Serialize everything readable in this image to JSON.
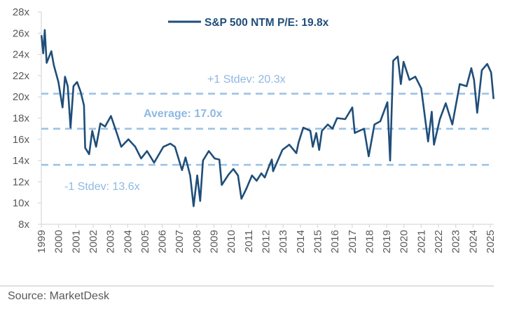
{
  "chart_data": {
    "type": "line",
    "title": "",
    "xlabel": "",
    "ylabel": "",
    "xlim": [
      1999,
      2025
    ],
    "ylim": [
      8,
      28
    ],
    "grid": false,
    "legend_position": "top-center",
    "y_ticks": [
      8,
      10,
      12,
      14,
      16,
      18,
      20,
      22,
      24,
      26,
      28
    ],
    "y_tick_labels": [
      "8x",
      "10x",
      "12x",
      "14x",
      "16x",
      "18x",
      "20x",
      "22x",
      "24x",
      "26x",
      "28x"
    ],
    "x_ticks": [
      1999,
      2000,
      2001,
      2002,
      2003,
      2004,
      2005,
      2006,
      2007,
      2008,
      2009,
      2010,
      2011,
      2012,
      2013,
      2014,
      2015,
      2016,
      2017,
      2018,
      2019,
      2020,
      2021,
      2022,
      2023,
      2024,
      2025
    ],
    "x_tick_labels": [
      "1999",
      "2000",
      "2001",
      "2002",
      "2003",
      "2004",
      "2005",
      "2006",
      "2007",
      "2008",
      "2009",
      "2010",
      "2011",
      "2012",
      "2013",
      "2014",
      "2015",
      "2016",
      "2017",
      "2018",
      "2019",
      "2020",
      "2021",
      "2022",
      "2023",
      "2024",
      "2025"
    ],
    "series": [
      {
        "name": "S&P 500 NTM P/E: 19.8x",
        "color": "#1f4e79",
        "x": [
          1999.01,
          1999.11,
          1999.2,
          1999.31,
          1999.58,
          1999.72,
          1999.99,
          2000.23,
          2000.37,
          2000.53,
          2000.69,
          2000.86,
          2001.07,
          2001.27,
          2001.47,
          2001.54,
          2001.77,
          2001.95,
          2002.17,
          2002.42,
          2002.69,
          2003.03,
          2003.37,
          2003.63,
          2004.04,
          2004.44,
          2004.78,
          2005.12,
          2005.53,
          2006.07,
          2006.47,
          2006.74,
          2007.15,
          2007.35,
          2007.62,
          2007.82,
          2008.03,
          2008.2,
          2008.36,
          2008.7,
          2009.04,
          2009.31,
          2009.45,
          2009.85,
          2010.12,
          2010.39,
          2010.59,
          2010.86,
          2011.2,
          2011.47,
          2011.74,
          2011.94,
          2012.15,
          2012.35,
          2012.42,
          2012.96,
          2013.36,
          2013.77,
          2013.9,
          2014.17,
          2014.58,
          2014.72,
          2014.92,
          2015.09,
          2015.25,
          2015.59,
          2015.86,
          2016.13,
          2016.6,
          2017.01,
          2017.15,
          2017.41,
          2017.69,
          2017.96,
          2018.29,
          2018.63,
          2019.04,
          2019.2,
          2019.38,
          2019.64,
          2019.82,
          2019.98,
          2020.32,
          2020.66,
          2021.0,
          2021.4,
          2021.61,
          2021.74,
          2022.08,
          2022.42,
          2022.8,
          2023.23,
          2023.63,
          2023.9,
          2024.06,
          2024.24,
          2024.51,
          2024.82,
          2025.05,
          2025.19
        ],
        "y": [
          25.8,
          24.1,
          26.3,
          23.2,
          24.3,
          23.0,
          21.4,
          19.0,
          21.9,
          21.0,
          17.1,
          21.0,
          21.4,
          20.5,
          19.2,
          15.2,
          14.6,
          16.8,
          15.3,
          17.5,
          17.2,
          18.2,
          16.6,
          15.3,
          16.0,
          15.3,
          14.2,
          14.9,
          13.8,
          15.3,
          15.6,
          15.3,
          13.1,
          14.3,
          12.6,
          9.7,
          12.6,
          10.2,
          14.0,
          14.9,
          14.2,
          14.1,
          11.7,
          12.7,
          13.2,
          12.6,
          10.4,
          11.3,
          12.6,
          12.1,
          12.8,
          12.4,
          13.3,
          14.1,
          13.0,
          15.0,
          15.5,
          14.7,
          15.7,
          17.1,
          16.8,
          15.3,
          16.6,
          15.0,
          16.8,
          17.4,
          17.0,
          18.0,
          17.9,
          19.0,
          16.6,
          16.8,
          17.0,
          14.4,
          17.4,
          17.7,
          19.5,
          14.0,
          23.4,
          23.8,
          21.2,
          23.3,
          21.6,
          21.9,
          20.8,
          15.8,
          18.6,
          15.5,
          17.9,
          19.4,
          17.4,
          21.2,
          21.0,
          22.7,
          21.6,
          18.5,
          22.5,
          23.1,
          22.3,
          19.8
        ]
      }
    ],
    "reference_lines": [
      {
        "label": "+1 Stdev: 20.3x",
        "value": 20.3,
        "color": "#9dc3e6",
        "style": "dashed"
      },
      {
        "label": "Average: 17.0x",
        "value": 17.0,
        "color": "#9dc3e6",
        "style": "dashed"
      },
      {
        "label": "-1 Stdev: 13.6x",
        "value": 13.6,
        "color": "#9dc3e6",
        "style": "dashed"
      }
    ]
  },
  "source": "Source: MarketDesk"
}
